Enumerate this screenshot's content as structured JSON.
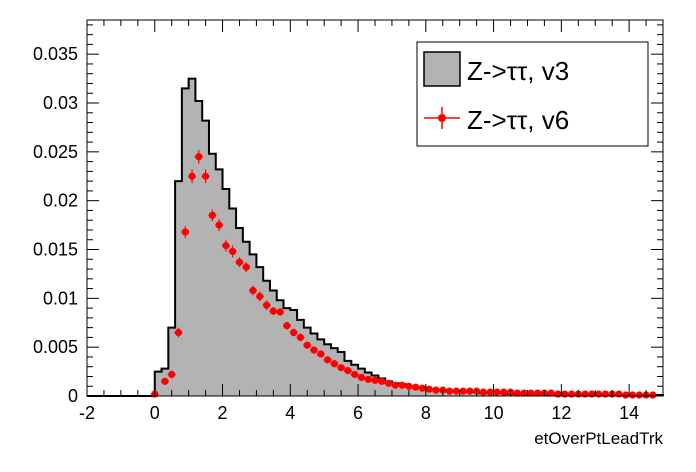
{
  "chart_data": {
    "type": "histogram",
    "xlabel": "etOverPtLeadTrk",
    "ylabel": "",
    "xlim": [
      -2,
      15
    ],
    "ylim": [
      0,
      0.0385
    ],
    "grid": false,
    "legend_position": "top-right",
    "x_ticks": [
      "-2",
      "0",
      "2",
      "4",
      "6",
      "8",
      "10",
      "12",
      "14"
    ],
    "y_ticks": [
      "0",
      "0.005",
      "0.01",
      "0.015",
      "0.02",
      "0.025",
      "0.03",
      "0.035"
    ],
    "series": [
      {
        "name": "Z->ττ, v3",
        "style": "filled-histogram",
        "fill_color": "#b3b3b3",
        "line_color": "#000000",
        "bin_width": 0.2,
        "x_start": 0.0,
        "values": [
          0.0025,
          0.0028,
          0.007,
          0.022,
          0.0315,
          0.0325,
          0.0302,
          0.0282,
          0.0248,
          0.0232,
          0.0212,
          0.0192,
          0.0172,
          0.0158,
          0.0145,
          0.0132,
          0.0118,
          0.0108,
          0.0098,
          0.009,
          0.0088,
          0.0078,
          0.007,
          0.0064,
          0.0058,
          0.0053,
          0.0049,
          0.0045,
          0.0036,
          0.0032,
          0.0028,
          0.0024,
          0.0021,
          0.0018,
          0.0015,
          0.0013,
          0.0012,
          0.001,
          0.0009,
          0.0008,
          0.0007,
          0.0006,
          0.0006,
          0.0005,
          0.0005,
          0.0004,
          0.0004,
          0.0004,
          0.0003,
          0.0003,
          0.0003,
          0.0003,
          0.0002,
          0.0002,
          0.0002,
          0.0002,
          0.0002,
          0.0002,
          0.0001,
          0.0001,
          0.0001,
          0.0001,
          0.0001,
          0.0001,
          0.0001,
          0.0001,
          0.0001,
          0.0001,
          0.0001,
          0.0001,
          0.0001,
          0.0001,
          0.0001,
          0.0001,
          0.0001
        ]
      },
      {
        "name": "Z->ττ, v6",
        "style": "markers-with-errors",
        "color": "#ff0000",
        "x": [
          0.0,
          0.3,
          0.5,
          0.7,
          0.9,
          1.1,
          1.3,
          1.5,
          1.7,
          1.9,
          2.1,
          2.3,
          2.5,
          2.7,
          2.9,
          3.1,
          3.3,
          3.5,
          3.7,
          3.9,
          4.1,
          4.3,
          4.5,
          4.7,
          4.9,
          5.1,
          5.3,
          5.5,
          5.7,
          5.9,
          6.1,
          6.3,
          6.5,
          6.7,
          6.9,
          7.1,
          7.3,
          7.5,
          7.7,
          7.9,
          8.1,
          8.3,
          8.5,
          8.7,
          8.9,
          9.1,
          9.3,
          9.5,
          9.7,
          9.9,
          10.1,
          10.3,
          10.5,
          10.7,
          10.9,
          11.1,
          11.3,
          11.5,
          11.7,
          11.9,
          12.1,
          12.3,
          12.5,
          12.7,
          12.9,
          13.1,
          13.3,
          13.5,
          13.7,
          13.9,
          14.1,
          14.3,
          14.5,
          14.7
        ],
        "values": [
          0.0002,
          0.0015,
          0.0022,
          0.0065,
          0.0168,
          0.0225,
          0.0245,
          0.0225,
          0.0185,
          0.0175,
          0.0154,
          0.0148,
          0.0137,
          0.0132,
          0.0108,
          0.0102,
          0.0093,
          0.0087,
          0.0086,
          0.0072,
          0.0065,
          0.006,
          0.0052,
          0.0047,
          0.0043,
          0.0037,
          0.0033,
          0.0029,
          0.0026,
          0.0022,
          0.0019,
          0.0017,
          0.0016,
          0.0015,
          0.0013,
          0.0011,
          0.0011,
          0.001,
          0.0009,
          0.0008,
          0.0007,
          0.0006,
          0.0006,
          0.0005,
          0.0005,
          0.0005,
          0.0005,
          0.0005,
          0.0004,
          0.0004,
          0.0004,
          0.0004,
          0.0004,
          0.0003,
          0.0003,
          0.0003,
          0.0003,
          0.0003,
          0.0003,
          0.0002,
          0.0002,
          0.0002,
          0.0002,
          0.0002,
          0.0002,
          0.0002,
          0.0002,
          0.0002,
          0.0002,
          0.0001,
          0.0001,
          0.0001,
          0.0001,
          0.0001
        ],
        "errors": [
          0.0002,
          0.0003,
          0.0004,
          0.0005,
          0.0006,
          0.0007,
          0.0007,
          0.0007,
          0.0006,
          0.0006,
          0.0006,
          0.0006,
          0.0005,
          0.0005,
          0.0005,
          0.0005,
          0.0005,
          0.0004,
          0.0004,
          0.0004,
          0.0004,
          0.0004,
          0.0003,
          0.0003,
          0.0003,
          0.0003,
          0.0003,
          0.0003,
          0.0002,
          0.0002,
          0.0002,
          0.0002,
          0.0002,
          0.0002,
          0.0002,
          0.0002,
          0.0002,
          0.0002,
          0.0002,
          0.0002,
          0.0002,
          0.0001,
          0.0001,
          0.0001,
          0.0001,
          0.0001,
          0.0001,
          0.0001,
          0.0001,
          0.0001,
          0.0001,
          0.0001,
          0.0001,
          0.0001,
          0.0001,
          0.0001,
          0.0001,
          0.0001,
          0.0001,
          0.0001,
          0.0001,
          0.0001,
          0.0001,
          0.0001,
          0.0001,
          0.0001,
          0.0001,
          0.0001,
          0.0001,
          0.0001,
          0.0001,
          0.0001,
          0.0001,
          0.0001
        ]
      }
    ]
  }
}
